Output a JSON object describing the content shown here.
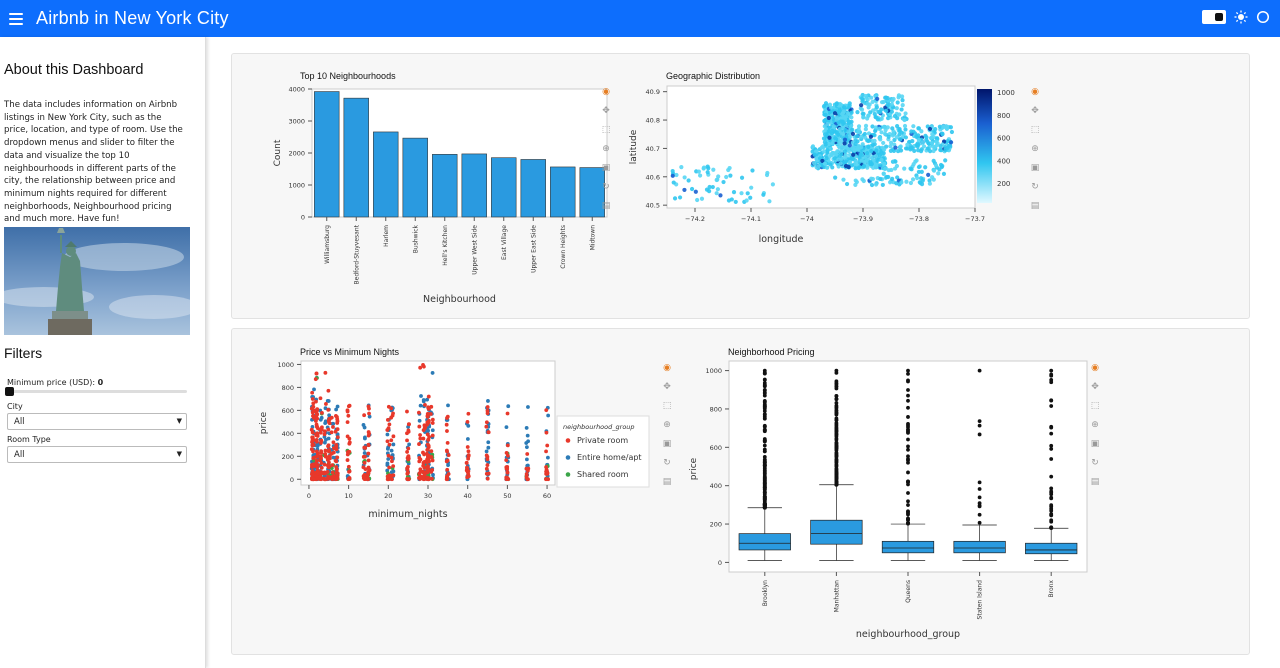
{
  "header": {
    "title": "Airbnb in New York City",
    "accent": "#0d6efd"
  },
  "sidebar": {
    "about_title": "About this Dashboard",
    "about_text": "The data includes information on Airbnb listings in New York City, such as the price, location, and type of room. Use the dropdown menus and slider to filter the data and visualize the top 10 neighbourhoods in different parts of the city, the relationship between price and minimum nights required for different neighborhoods, Neighbourhood pricing and much more. Have fun!",
    "image_icon": "statue-of-liberty-image",
    "filters_title": "Filters",
    "min_price_label": "Minimum price (USD):",
    "min_price_value": "0",
    "min_price_fraction": 0,
    "city_label": "City",
    "city_value": "All",
    "room_type_label": "Room Type",
    "room_type_value": "All"
  },
  "toolbar_icons": [
    "bokeh-logo-icon",
    "pan-icon",
    "box-zoom-icon",
    "wheel-zoom-icon",
    "save-icon",
    "reset-icon",
    "hover-icon"
  ],
  "chart_data": [
    {
      "type": "bar",
      "title": "Top 10 Neighbourhoods",
      "xlabel": "Neighbourhood",
      "ylabel": "Count",
      "categories": [
        "Williamsburg",
        "Bedford-Stuyvesant",
        "Harlem",
        "Bushwick",
        "Hell's Kitchen",
        "Upper West Side",
        "East Village",
        "Upper East Side",
        "Crown Heights",
        "Midtown"
      ],
      "values": [
        3920,
        3714,
        2658,
        2465,
        1958,
        1971,
        1853,
        1798,
        1564,
        1545
      ],
      "ylim": [
        0,
        4000
      ],
      "yticks": [
        "0",
        "1000",
        "2000",
        "3000",
        "4000"
      ],
      "color": "#2a9ae0"
    },
    {
      "type": "scatter",
      "title": "Geographic Distribution",
      "xlabel": "longitude",
      "ylabel": "latitude",
      "xticks": [
        "−74.2",
        "−74.1",
        "−74",
        "−73.9",
        "−73.8",
        "−73.7"
      ],
      "yticks": [
        "40.5",
        "40.6",
        "40.7",
        "40.8",
        "40.9"
      ],
      "xlim": [
        -74.25,
        -73.7
      ],
      "ylim": [
        40.49,
        40.92
      ],
      "colorbar_ticks": [
        "1000",
        "800",
        "600",
        "400",
        "200"
      ],
      "colorbar_range": [
        0,
        1000
      ],
      "point_color": "#30c6f0"
    },
    {
      "type": "scatter",
      "title": "Price vs Minimum Nights",
      "xlabel": "minimum_nights",
      "ylabel": "price",
      "xticks": [
        "0",
        "10",
        "20",
        "30",
        "40",
        "50",
        "60"
      ],
      "yticks": [
        "0",
        "200",
        "400",
        "600",
        "800",
        "1000"
      ],
      "xlim": [
        -2,
        62
      ],
      "ylim": [
        -50,
        1030
      ],
      "legend_title": "neighbourhood_group",
      "series": [
        {
          "name": "Private room",
          "color": "#e8382b"
        },
        {
          "name": "Entire home/apt",
          "color": "#2c7bb6"
        },
        {
          "name": "Shared room",
          "color": "#3aa548"
        }
      ]
    },
    {
      "type": "box",
      "title": "Neighborhood Pricing",
      "xlabel": "neighbourhood_group",
      "ylabel": "price",
      "categories": [
        "Brooklyn",
        "Manhattan",
        "Queens",
        "Staten Island",
        "Bronx"
      ],
      "yticks": [
        "0",
        "200",
        "400",
        "600",
        "800",
        "1000"
      ],
      "ylim": [
        -50,
        1050
      ],
      "boxes": [
        {
          "q1": 65,
          "median": 100,
          "q3": 150,
          "whisker_low": 10,
          "whisker_high": 285
        },
        {
          "q1": 95,
          "median": 150,
          "q3": 220,
          "whisker_low": 10,
          "whisker_high": 405
        },
        {
          "q1": 50,
          "median": 75,
          "q3": 110,
          "whisker_low": 10,
          "whisker_high": 200
        },
        {
          "q1": 50,
          "median": 75,
          "q3": 110,
          "whisker_low": 10,
          "whisker_high": 195
        },
        {
          "q1": 45,
          "median": 65,
          "q3": 100,
          "whisker_low": 10,
          "whisker_high": 178
        }
      ],
      "color": "#2a9ae0"
    }
  ]
}
